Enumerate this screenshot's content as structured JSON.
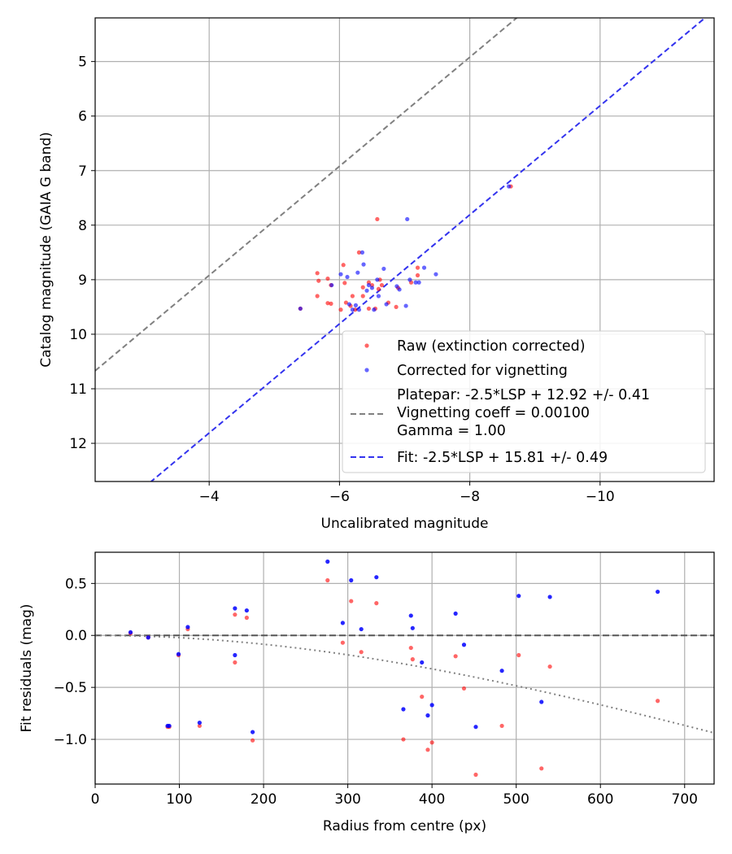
{
  "chart_data": [
    {
      "type": "scatter",
      "xlabel": "Uncalibrated magnitude",
      "ylabel": "Catalog magnitude (GAIA G band)",
      "xlim": [
        -2.25,
        -11.75
      ],
      "ylim": [
        12.7,
        4.2
      ],
      "x_inverted": true,
      "y_inverted": true,
      "grid": true,
      "legend_placement": "lower-right",
      "xticks": [
        -4,
        -6,
        -8,
        -10
      ],
      "xtick_labels": [
        "−4",
        "−6",
        "−8",
        "−10"
      ],
      "yticks": [
        5,
        6,
        7,
        8,
        9,
        10,
        11,
        12
      ],
      "ytick_labels": [
        "5",
        "6",
        "7",
        "8",
        "9",
        "10",
        "11",
        "12"
      ],
      "series": [
        {
          "name": "Raw (extinction corrected)",
          "color": "#ff0000",
          "points": [
            [
              -5.4,
              9.53
            ],
            [
              -5.66,
              8.88
            ],
            [
              -5.68,
              9.02
            ],
            [
              -5.66,
              9.3
            ],
            [
              -5.82,
              8.98
            ],
            [
              -5.82,
              9.43
            ],
            [
              -5.87,
              9.44
            ],
            [
              -5.87,
              9.1
            ],
            [
              -6.02,
              9.55
            ],
            [
              -6.06,
              8.73
            ],
            [
              -6.08,
              9.06
            ],
            [
              -6.1,
              9.42
            ],
            [
              -6.17,
              9.48
            ],
            [
              -6.2,
              9.3
            ],
            [
              -6.24,
              9.55
            ],
            [
              -6.3,
              8.5
            ],
            [
              -6.36,
              9.3
            ],
            [
              -6.36,
              9.14
            ],
            [
              -6.45,
              9.05
            ],
            [
              -6.45,
              9.53
            ],
            [
              -6.5,
              9.1
            ],
            [
              -6.55,
              9.53
            ],
            [
              -6.58,
              7.89
            ],
            [
              -6.6,
              9.17
            ],
            [
              -6.62,
              9.0
            ],
            [
              -6.65,
              9.1
            ],
            [
              -6.75,
              9.42
            ],
            [
              -6.87,
              9.5
            ],
            [
              -6.9,
              9.15
            ],
            [
              -7.1,
              9.05
            ],
            [
              -7.2,
              8.78
            ],
            [
              -7.2,
              8.92
            ],
            [
              -8.63,
              7.29
            ]
          ]
        },
        {
          "name": "Corrected for vignetting",
          "color": "#0000ff",
          "points": [
            [
              -5.4,
              9.53
            ],
            [
              -5.88,
              9.1
            ],
            [
              -6.02,
              8.9
            ],
            [
              -6.12,
              8.95
            ],
            [
              -6.15,
              9.45
            ],
            [
              -6.2,
              9.55
            ],
            [
              -6.25,
              9.47
            ],
            [
              -6.28,
              8.87
            ],
            [
              -6.3,
              9.55
            ],
            [
              -6.35,
              8.5
            ],
            [
              -6.37,
              8.72
            ],
            [
              -6.42,
              9.2
            ],
            [
              -6.45,
              9.1
            ],
            [
              -6.5,
              9.15
            ],
            [
              -6.53,
              9.55
            ],
            [
              -6.58,
              9.0
            ],
            [
              -6.6,
              9.3
            ],
            [
              -6.68,
              8.8
            ],
            [
              -6.72,
              9.45
            ],
            [
              -6.88,
              9.12
            ],
            [
              -6.92,
              9.18
            ],
            [
              -7.02,
              9.48
            ],
            [
              -7.04,
              7.89
            ],
            [
              -7.08,
              9.0
            ],
            [
              -7.17,
              9.05
            ],
            [
              -7.22,
              9.05
            ],
            [
              -7.3,
              8.78
            ],
            [
              -7.48,
              8.9
            ],
            [
              -8.6,
              7.29
            ]
          ]
        }
      ],
      "lines": [
        {
          "name": "Platepar: -2.5*LSP + 12.92 +/- 0.41\nVignetting coeff = 0.00100\nGamma = 1.00",
          "intercept": 12.92,
          "slope": 1,
          "color": "#808080",
          "style": "dashed"
        },
        {
          "name": "Fit: -2.5*LSP + 15.81 +/- 0.49",
          "intercept": 15.81,
          "slope": 1,
          "color": "#3333ee",
          "style": "dashed"
        }
      ]
    },
    {
      "type": "scatter",
      "xlabel": "Radius from centre (px)",
      "ylabel": "Fit residuals (mag)",
      "xlim": [
        0,
        735
      ],
      "ylim": [
        -1.43,
        0.8
      ],
      "grid": true,
      "xticks": [
        0,
        100,
        200,
        300,
        400,
        500,
        600,
        700
      ],
      "xtick_labels": [
        "0",
        "100",
        "200",
        "300",
        "400",
        "500",
        "600",
        "700"
      ],
      "yticks": [
        0.5,
        0.0,
        -0.5,
        -1.0
      ],
      "ytick_labels": [
        "0.5",
        "0.0",
        "−0.5",
        "−1.0"
      ],
      "series": [
        {
          "name": "Raw (extinction corrected)",
          "color": "#ff0000",
          "points": [
            [
              42,
              0.02
            ],
            [
              63,
              -0.02
            ],
            [
              86,
              -0.88
            ],
            [
              88,
              -0.88
            ],
            [
              99,
              -0.19
            ],
            [
              110,
              0.06
            ],
            [
              124,
              -0.87
            ],
            [
              166,
              0.2
            ],
            [
              166,
              -0.26
            ],
            [
              180,
              0.17
            ],
            [
              187,
              -1.01
            ],
            [
              276,
              0.53
            ],
            [
              294,
              -0.07
            ],
            [
              304,
              0.33
            ],
            [
              316,
              -0.16
            ],
            [
              334,
              0.31
            ],
            [
              366,
              -1.0
            ],
            [
              375,
              -0.12
            ],
            [
              377,
              -0.23
            ],
            [
              388,
              -0.59
            ],
            [
              395,
              -1.1
            ],
            [
              400,
              -1.03
            ],
            [
              428,
              -0.2
            ],
            [
              438,
              -0.51
            ],
            [
              452,
              -1.34
            ],
            [
              483,
              -0.87
            ],
            [
              503,
              -0.19
            ],
            [
              530,
              -1.28
            ],
            [
              540,
              -0.3
            ],
            [
              668,
              -0.63
            ]
          ]
        },
        {
          "name": "Corrected for vignetting",
          "color": "#0000ff",
          "points": [
            [
              42,
              0.03
            ],
            [
              63,
              -0.02
            ],
            [
              86,
              -0.87
            ],
            [
              88,
              -0.87
            ],
            [
              99,
              -0.18
            ],
            [
              110,
              0.08
            ],
            [
              124,
              -0.84
            ],
            [
              166,
              0.26
            ],
            [
              166,
              -0.19
            ],
            [
              180,
              0.24
            ],
            [
              187,
              -0.93
            ],
            [
              276,
              0.71
            ],
            [
              294,
              0.12
            ],
            [
              304,
              0.53
            ],
            [
              316,
              0.06
            ],
            [
              334,
              0.56
            ],
            [
              366,
              -0.71
            ],
            [
              375,
              0.19
            ],
            [
              377,
              0.07
            ],
            [
              388,
              -0.26
            ],
            [
              395,
              -0.77
            ],
            [
              400,
              -0.67
            ],
            [
              428,
              0.21
            ],
            [
              438,
              -0.09
            ],
            [
              452,
              -0.88
            ],
            [
              483,
              -0.34
            ],
            [
              503,
              0.38
            ],
            [
              530,
              -0.64
            ],
            [
              540,
              0.37
            ],
            [
              668,
              0.42
            ]
          ]
        }
      ],
      "zero_line": {
        "value": 0,
        "color": "#555555",
        "style": "dashed"
      },
      "vignetting_curve": {
        "coeff": 0.001,
        "color": "#808080",
        "style": "dotted"
      }
    }
  ]
}
